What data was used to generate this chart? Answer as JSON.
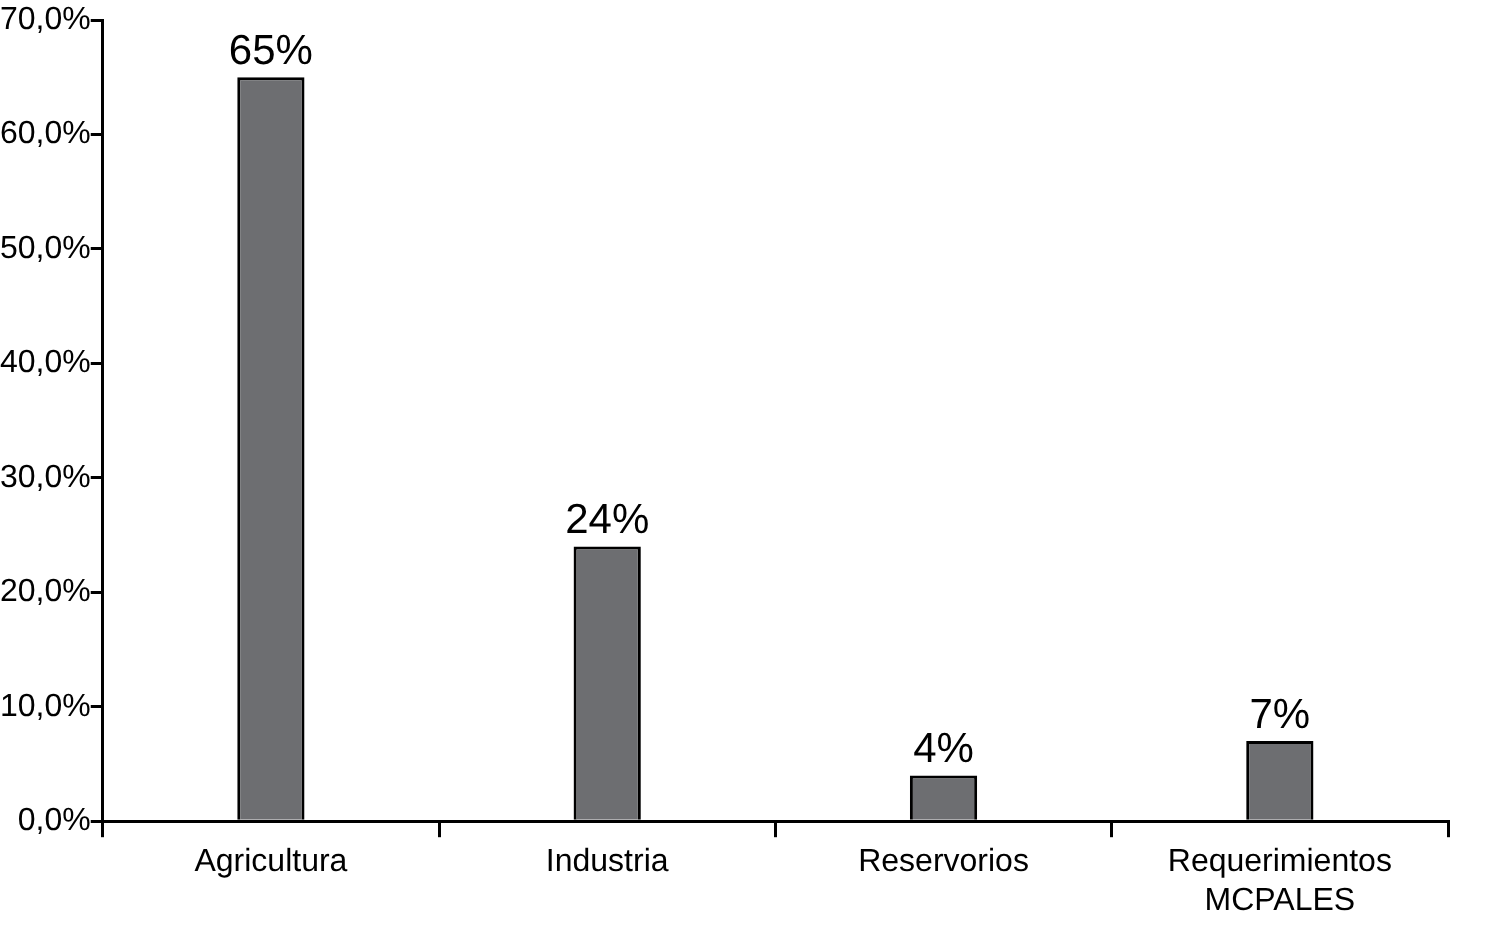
{
  "chart_data": {
    "type": "bar",
    "categories": [
      "Agricultura",
      "Industria",
      "Reservorios",
      "Requerimientos MCPALES"
    ],
    "values": [
      65,
      24,
      4,
      7
    ],
    "color": "#6d6e71",
    "value_labels": [
      "65%",
      "24%",
      "4%",
      "7%"
    ],
    "ylim": [
      0,
      70
    ],
    "yticks": [
      {
        "value": 0,
        "label": "0,0%"
      },
      {
        "value": 10,
        "label": "10,0%"
      },
      {
        "value": 20,
        "label": "20,0%"
      },
      {
        "value": 30,
        "label": "30,0%"
      },
      {
        "value": 40,
        "label": "40,0%"
      },
      {
        "value": 50,
        "label": "50,0%"
      },
      {
        "value": 60,
        "label": "60,0%"
      },
      {
        "value": 70,
        "label": "70,0%"
      }
    ],
    "grid": false,
    "legend": false
  }
}
